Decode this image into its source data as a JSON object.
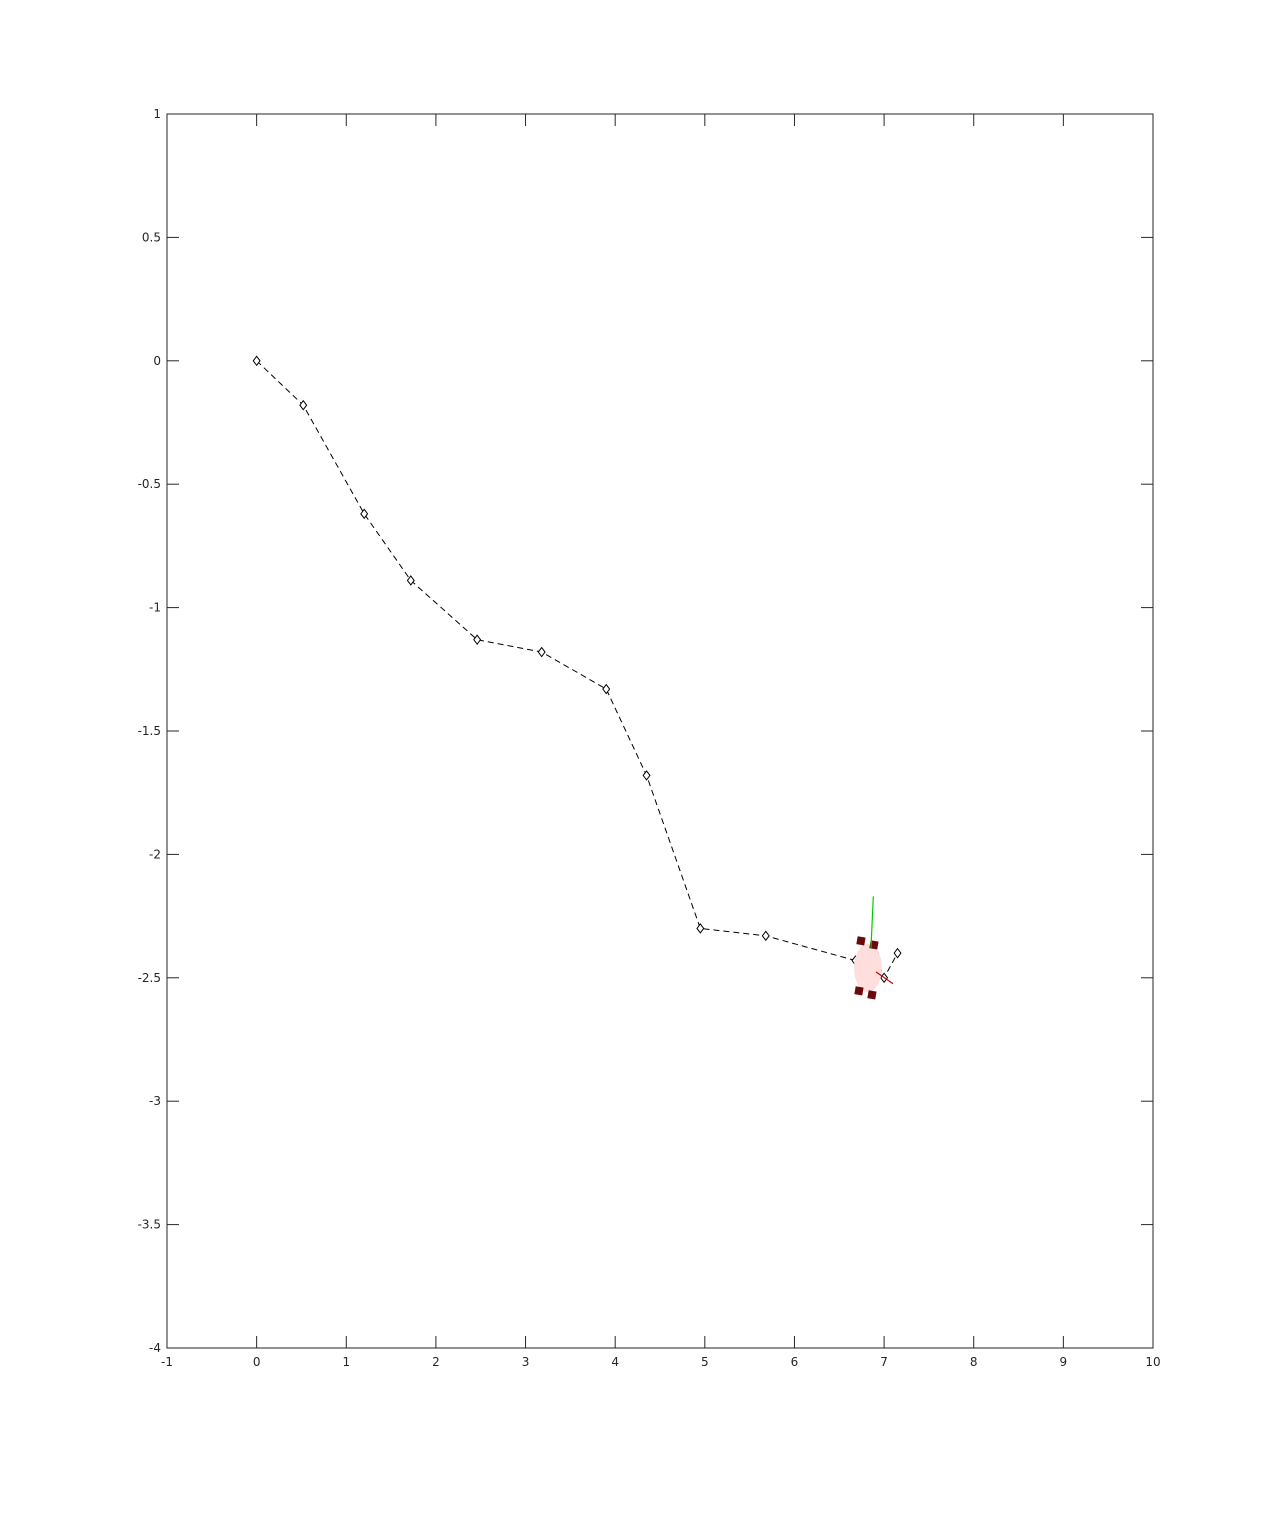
{
  "chart_data": {
    "type": "line",
    "title": "",
    "xlabel": "",
    "ylabel": "",
    "xlim": [
      -1,
      10
    ],
    "ylim": [
      -4,
      1
    ],
    "grid": false,
    "x_ticks": [
      -1,
      0,
      1,
      2,
      3,
      4,
      5,
      6,
      7,
      8,
      9,
      10
    ],
    "y_ticks": [
      1,
      0.5,
      0,
      -0.5,
      -1,
      -1.5,
      -2,
      -2.5,
      -3,
      -3.5,
      -4
    ],
    "x_tick_labels": [
      "-1",
      "0",
      "1",
      "2",
      "3",
      "4",
      "5",
      "6",
      "7",
      "8",
      "9",
      "10"
    ],
    "y_tick_labels": [
      "1",
      "0.5",
      "0",
      "-0.5",
      "-1",
      "-1.5",
      "-2",
      "-2.5",
      "-3",
      "-3.5",
      "-4"
    ],
    "series": [
      {
        "style": "dashed-line-diamond-markers",
        "color": "#000000",
        "x": [
          0,
          0.52,
          1.2,
          1.72,
          2.46,
          3.18,
          3.9,
          4.35,
          4.95,
          5.68,
          6.68,
          6.9,
          7.0,
          7.15
        ],
        "y": [
          0.0,
          -0.18,
          -0.62,
          -0.89,
          -1.13,
          -1.18,
          -1.33,
          -1.68,
          -2.3,
          -2.33,
          -2.43,
          -2.4,
          -2.5,
          -2.4
        ]
      }
    ],
    "robot": {
      "center": [
        6.82,
        -2.46
      ],
      "body_color": "#ffdede",
      "wheel_color": "#6b0a0a",
      "heading_color": "#00cc00",
      "heading_tip": [
        6.88,
        -2.17
      ],
      "side_axis_color": "#cc0000",
      "side_axis_tip": [
        7.1,
        -2.5
      ]
    }
  }
}
